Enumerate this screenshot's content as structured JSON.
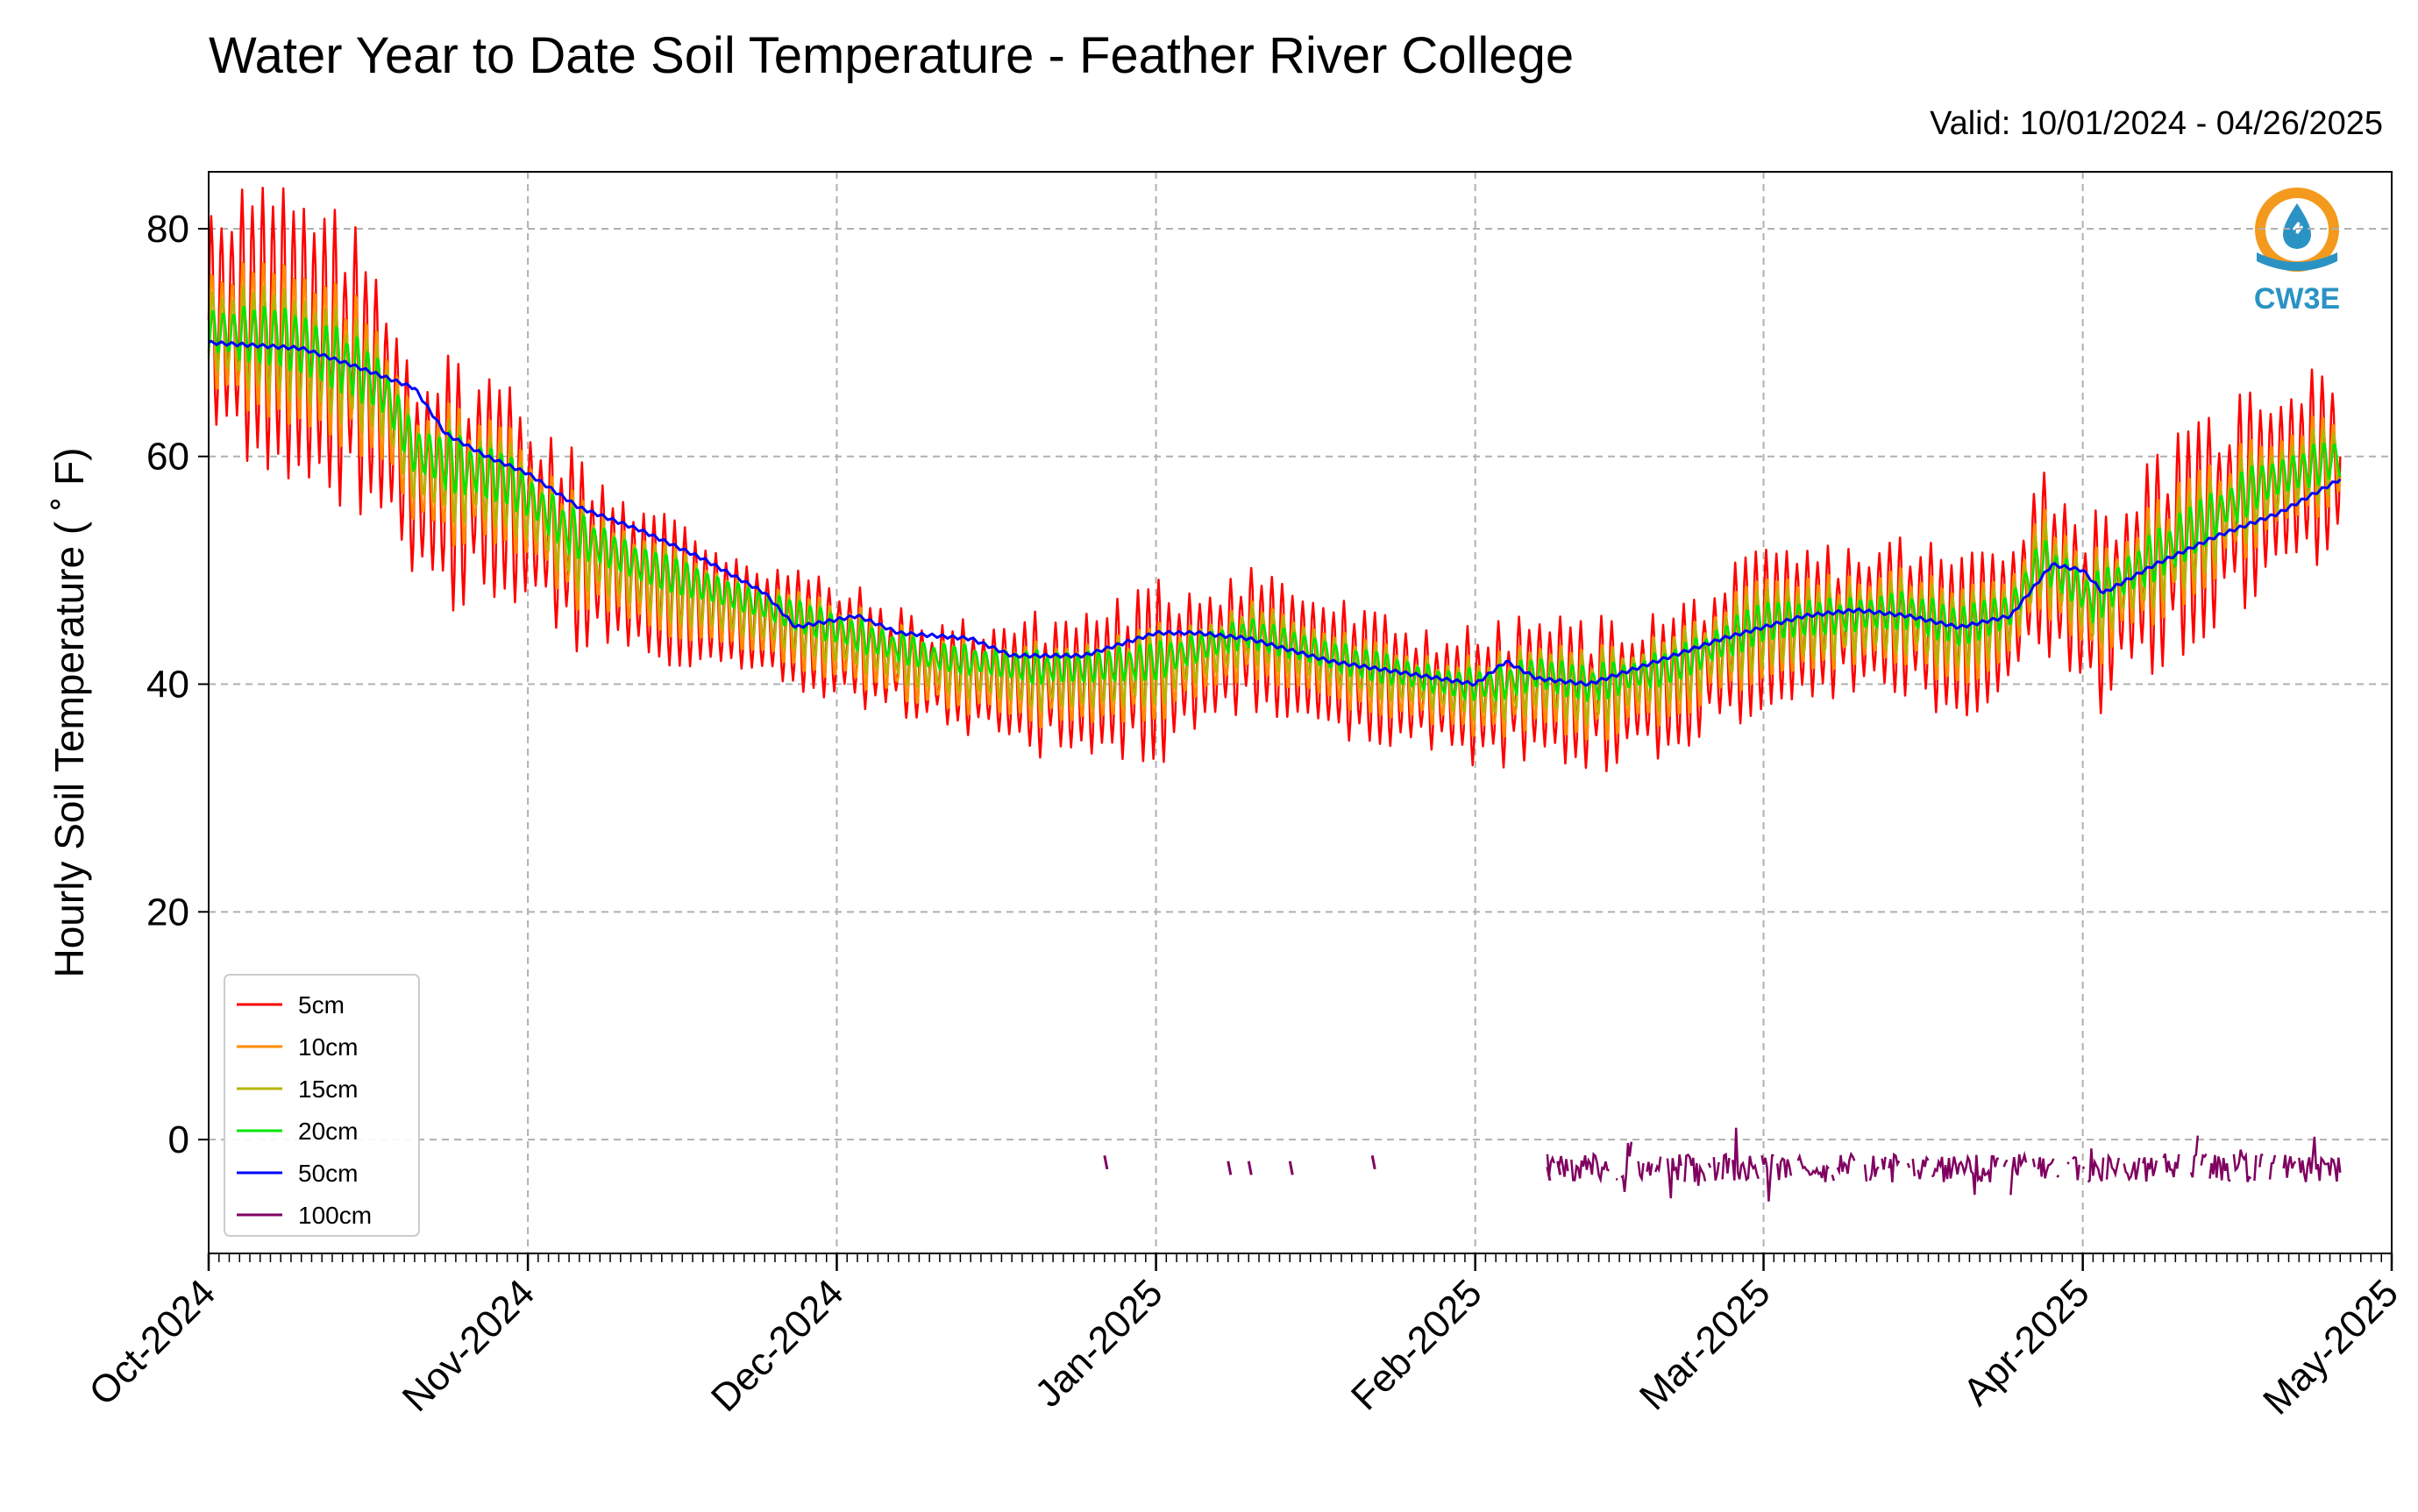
{
  "chart_data": {
    "type": "line",
    "title": "Water Year to Date Soil Temperature - Feather River College",
    "subtitle": "Valid: 10/01/2024 - 04/26/2025",
    "ylabel": "Hourly Soil Temperature ($^\\circ$F)",
    "ylabel_display": "Hourly Soil Temperature ( ˚ F)",
    "xlabel": "",
    "x_range": [
      "2024-10-01",
      "2025-05-01"
    ],
    "ylim": [
      -10,
      85
    ],
    "y_ticks": [
      0,
      20,
      40,
      60,
      80
    ],
    "x_ticks": [
      {
        "date": "2024-10-01",
        "label": "Oct-2024"
      },
      {
        "date": "2024-11-01",
        "label": "Nov-2024"
      },
      {
        "date": "2024-12-01",
        "label": "Dec-2024"
      },
      {
        "date": "2025-01-01",
        "label": "Jan-2025"
      },
      {
        "date": "2025-02-01",
        "label": "Feb-2025"
      },
      {
        "date": "2025-03-01",
        "label": "Mar-2025"
      },
      {
        "date": "2025-04-01",
        "label": "Apr-2025"
      },
      {
        "date": "2025-05-01",
        "label": "May-2025"
      }
    ],
    "grid": true,
    "legend_position": "lower-left",
    "logo_text": "CW3E",
    "series": [
      {
        "name": "5cm",
        "color": "#ff0000",
        "mean_points": [
          [
            "2024-10-01",
            72
          ],
          [
            "2024-10-08",
            71
          ],
          [
            "2024-10-15",
            68
          ],
          [
            "2024-10-18",
            65
          ],
          [
            "2024-10-21",
            58
          ],
          [
            "2024-10-30",
            57
          ],
          [
            "2024-11-05",
            52
          ],
          [
            "2024-11-12",
            49
          ],
          [
            "2024-11-22",
            46
          ],
          [
            "2024-12-04",
            43
          ],
          [
            "2024-12-10",
            41
          ],
          [
            "2024-12-20",
            40
          ],
          [
            "2024-12-25",
            40
          ],
          [
            "2025-01-01",
            41
          ],
          [
            "2025-01-08",
            43
          ],
          [
            "2025-01-10",
            44
          ],
          [
            "2025-01-20",
            41
          ],
          [
            "2025-01-30",
            39
          ],
          [
            "2025-02-03",
            39
          ],
          [
            "2025-02-07",
            40
          ],
          [
            "2025-02-12",
            39
          ],
          [
            "2025-02-20",
            40
          ],
          [
            "2025-03-01",
            45
          ],
          [
            "2025-03-15",
            46
          ],
          [
            "2025-03-20",
            44
          ],
          [
            "2025-03-25",
            46
          ],
          [
            "2025-03-28",
            51
          ],
          [
            "2025-04-02",
            46
          ],
          [
            "2025-04-10",
            52
          ],
          [
            "2025-04-18",
            57
          ],
          [
            "2025-04-26",
            60
          ]
        ],
        "amplitude": [
          12,
          10,
          6,
          4,
          7,
          5,
          6,
          6,
          8,
          9
        ]
      },
      {
        "name": "10cm",
        "color": "#ff8c00",
        "mean_points": [
          [
            "2024-10-01",
            71
          ],
          [
            "2024-10-08",
            70
          ],
          [
            "2024-10-15",
            67.5
          ],
          [
            "2024-10-18",
            65
          ],
          [
            "2024-10-21",
            59
          ],
          [
            "2024-10-30",
            57.5
          ],
          [
            "2024-11-05",
            52
          ],
          [
            "2024-11-12",
            49
          ],
          [
            "2024-11-22",
            46
          ],
          [
            "2024-12-04",
            43
          ],
          [
            "2024-12-10",
            41
          ],
          [
            "2024-12-20",
            40
          ],
          [
            "2024-12-25",
            40
          ],
          [
            "2025-01-01",
            41
          ],
          [
            "2025-01-08",
            43
          ],
          [
            "2025-01-10",
            44
          ],
          [
            "2025-01-20",
            41
          ],
          [
            "2025-01-30",
            39
          ],
          [
            "2025-02-03",
            39
          ],
          [
            "2025-02-07",
            40
          ],
          [
            "2025-02-12",
            39
          ],
          [
            "2025-02-20",
            40.5
          ],
          [
            "2025-03-01",
            45
          ],
          [
            "2025-03-15",
            46
          ],
          [
            "2025-03-20",
            44
          ],
          [
            "2025-03-25",
            46
          ],
          [
            "2025-03-28",
            51
          ],
          [
            "2025-04-02",
            46.5
          ],
          [
            "2025-04-10",
            52
          ],
          [
            "2025-04-18",
            57
          ],
          [
            "2025-04-26",
            60
          ]
        ],
        "amplitude": [
          7,
          6,
          4,
          3,
          4,
          3,
          4,
          4,
          5,
          5
        ]
      },
      {
        "name": "15cm",
        "color": "#b5b500",
        "mean_points": [
          [
            "2024-10-01",
            71
          ],
          [
            "2024-10-08",
            70
          ],
          [
            "2024-10-15",
            67.5
          ],
          [
            "2024-10-18",
            65.5
          ],
          [
            "2024-10-21",
            59.5
          ],
          [
            "2024-10-30",
            57.5
          ],
          [
            "2024-11-05",
            52.5
          ],
          [
            "2024-11-12",
            49.5
          ],
          [
            "2024-11-22",
            46.5
          ],
          [
            "2024-12-04",
            43.5
          ],
          [
            "2024-12-10",
            41.5
          ],
          [
            "2024-12-20",
            40.5
          ],
          [
            "2024-12-25",
            40.5
          ],
          [
            "2025-01-01",
            41.5
          ],
          [
            "2025-01-08",
            43.5
          ],
          [
            "2025-01-10",
            44.5
          ],
          [
            "2025-01-20",
            41.5
          ],
          [
            "2025-01-30",
            39.5
          ],
          [
            "2025-02-03",
            39.5
          ],
          [
            "2025-02-07",
            40.5
          ],
          [
            "2025-02-12",
            39.5
          ],
          [
            "2025-02-20",
            41
          ],
          [
            "2025-03-01",
            45
          ],
          [
            "2025-03-15",
            46
          ],
          [
            "2025-03-20",
            44.5
          ],
          [
            "2025-03-25",
            46
          ],
          [
            "2025-03-28",
            51
          ],
          [
            "2025-04-02",
            47
          ],
          [
            "2025-04-10",
            52
          ],
          [
            "2025-04-18",
            57
          ],
          [
            "2025-04-26",
            60
          ]
        ],
        "amplitude": [
          4.5,
          4,
          3,
          2,
          3,
          2,
          3,
          3,
          3.5,
          3.5
        ]
      },
      {
        "name": "20cm",
        "color": "#00e600",
        "mean_points": [
          [
            "2024-10-01",
            71
          ],
          [
            "2024-10-08",
            70.5
          ],
          [
            "2024-10-15",
            68
          ],
          [
            "2024-10-18",
            66
          ],
          [
            "2024-10-21",
            60.5
          ],
          [
            "2024-10-30",
            58
          ],
          [
            "2024-11-05",
            53.5
          ],
          [
            "2024-11-12",
            50.5
          ],
          [
            "2024-11-22",
            47.5
          ],
          [
            "2024-12-04",
            44
          ],
          [
            "2024-12-10",
            42.5
          ],
          [
            "2024-12-20",
            41.5
          ],
          [
            "2024-12-25",
            41.5
          ],
          [
            "2025-01-01",
            42
          ],
          [
            "2025-01-08",
            44
          ],
          [
            "2025-01-10",
            44.5
          ],
          [
            "2025-01-20",
            42
          ],
          [
            "2025-01-30",
            40
          ],
          [
            "2025-02-03",
            40
          ],
          [
            "2025-02-07",
            41
          ],
          [
            "2025-02-12",
            40
          ],
          [
            "2025-02-20",
            41.5
          ],
          [
            "2025-03-01",
            45.5
          ],
          [
            "2025-03-15",
            46.5
          ],
          [
            "2025-03-20",
            45
          ],
          [
            "2025-03-25",
            46.5
          ],
          [
            "2025-03-28",
            51
          ],
          [
            "2025-04-02",
            47.5
          ],
          [
            "2025-04-10",
            52.5
          ],
          [
            "2025-04-18",
            57.5
          ],
          [
            "2025-04-26",
            60
          ]
        ],
        "amplitude": [
          2.5,
          2.5,
          1.5,
          1.2,
          1.5,
          1.2,
          1.5,
          1.5,
          2,
          2
        ]
      },
      {
        "name": "50cm",
        "color": "#0000ff",
        "points": [
          [
            "2024-10-01",
            70
          ],
          [
            "2024-10-10",
            69.5
          ],
          [
            "2024-10-15",
            68
          ],
          [
            "2024-10-18",
            67
          ],
          [
            "2024-10-21",
            66
          ],
          [
            "2024-10-24",
            62
          ],
          [
            "2024-10-28",
            60
          ],
          [
            "2024-11-01",
            58.5
          ],
          [
            "2024-11-06",
            55.5
          ],
          [
            "2024-11-12",
            53.5
          ],
          [
            "2024-11-18",
            51
          ],
          [
            "2024-11-24",
            48
          ],
          [
            "2024-11-27",
            45
          ],
          [
            "2024-12-03",
            46
          ],
          [
            "2024-12-07",
            44.5
          ],
          [
            "2024-12-14",
            44
          ],
          [
            "2024-12-18",
            42.5
          ],
          [
            "2024-12-25",
            42.5
          ],
          [
            "2025-01-01",
            44.5
          ],
          [
            "2025-01-05",
            44.5
          ],
          [
            "2025-01-10",
            44
          ],
          [
            "2025-01-18",
            42
          ],
          [
            "2025-01-25",
            41
          ],
          [
            "2025-02-01",
            40
          ],
          [
            "2025-02-04",
            42
          ],
          [
            "2025-02-07",
            40.5
          ],
          [
            "2025-02-12",
            40
          ],
          [
            "2025-02-17",
            41.5
          ],
          [
            "2025-02-25",
            44
          ],
          [
            "2025-03-05",
            46
          ],
          [
            "2025-03-10",
            46.5
          ],
          [
            "2025-03-15",
            46
          ],
          [
            "2025-03-20",
            45
          ],
          [
            "2025-03-25",
            46
          ],
          [
            "2025-03-29",
            50.5
          ],
          [
            "2025-04-01",
            50
          ],
          [
            "2025-04-03",
            48
          ],
          [
            "2025-04-08",
            50.5
          ],
          [
            "2025-04-14",
            53
          ],
          [
            "2025-04-20",
            55
          ],
          [
            "2025-04-26",
            58
          ]
        ]
      },
      {
        "name": "100cm",
        "color": "#800060",
        "segments_start": "2025-02-08",
        "segments_end": "2025-04-26",
        "typical_value": -2.5,
        "sporadic_marks": [
          [
            "2024-12-27",
            -2
          ],
          [
            "2025-01-08",
            -2.5
          ],
          [
            "2025-01-10",
            -2.5
          ],
          [
            "2025-01-14",
            -2.5
          ],
          [
            "2025-01-22",
            -2
          ],
          [
            "2025-02-08",
            -3
          ],
          [
            "2025-02-09",
            -2.5
          ]
        ]
      }
    ]
  }
}
